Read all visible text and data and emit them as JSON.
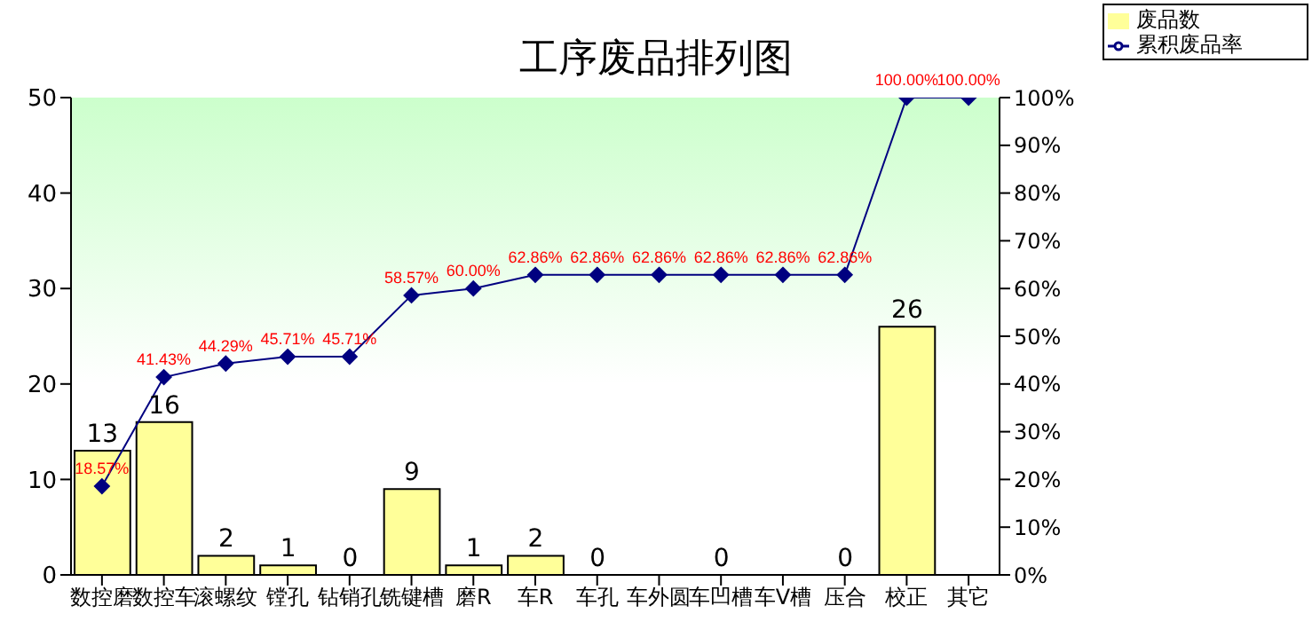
{
  "chart_data": {
    "type": "bar",
    "title": "工序废品排列图",
    "categories": [
      "数控磨",
      "数控车",
      "滚螺纹",
      "镗孔",
      "钻销孔",
      "铣键槽",
      "磨R",
      "车R",
      "车孔",
      "车外圆",
      "车凹槽",
      "车V槽",
      "压合",
      "校正",
      "其它"
    ],
    "series": [
      {
        "name": "废品数",
        "color": "#ffff99",
        "values": [
          13,
          16,
          2,
          1,
          0,
          9,
          1,
          2,
          0,
          null,
          0,
          null,
          0,
          26,
          null
        ]
      },
      {
        "name": "累积废品率",
        "type": "line",
        "axis": "y2",
        "color": "#000080",
        "marker": "diamond",
        "values": [
          18.57,
          41.43,
          44.29,
          45.71,
          45.71,
          58.57,
          60.0,
          62.86,
          62.86,
          62.86,
          62.86,
          62.86,
          62.86,
          100.0,
          100.0
        ],
        "value_labels": [
          "18.57%",
          "41.43%",
          "44.29%",
          "45.71%",
          "45.71%",
          "58.57%",
          "60.00%",
          "62.86%",
          "62.86%",
          "62.86%",
          "62.86%",
          "62.86%",
          "62.86%",
          "100.00%",
          "100.00%"
        ]
      }
    ],
    "ylim": [
      0,
      50
    ],
    "yticks": [
      0,
      10,
      20,
      30,
      40,
      50
    ],
    "y2lim": [
      0,
      100
    ],
    "y2ticks": [
      {
        "value": 0,
        "label": "0%"
      },
      {
        "value": 10,
        "label": "10%"
      },
      {
        "value": 20,
        "label": "20%"
      },
      {
        "value": 30,
        "label": "30%"
      },
      {
        "value": 40,
        "label": "40%"
      },
      {
        "value": 50,
        "label": "50%"
      },
      {
        "value": 60,
        "label": "60%"
      },
      {
        "value": 70,
        "label": "70%"
      },
      {
        "value": 80,
        "label": "80%"
      },
      {
        "value": 90,
        "label": "90%"
      },
      {
        "value": 100,
        "label": "100%"
      }
    ],
    "data_labels": true,
    "legend": "top right"
  }
}
